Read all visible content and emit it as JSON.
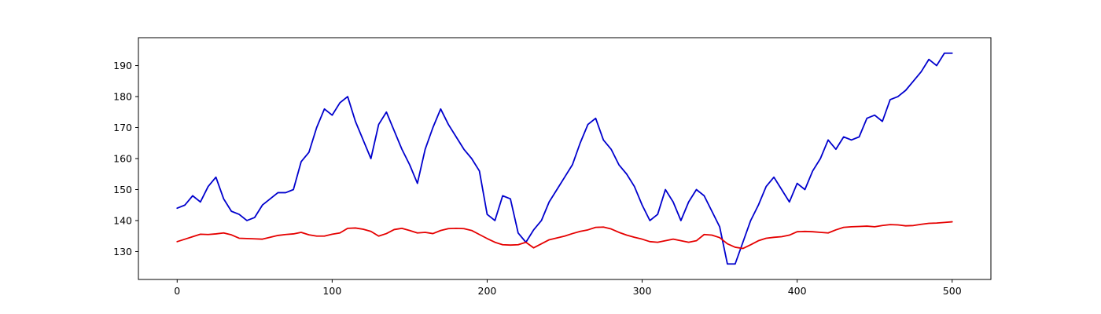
{
  "chart_data": {
    "type": "line",
    "title": "",
    "xlabel": "",
    "ylabel": "",
    "xlim": [
      -25,
      525
    ],
    "ylim": [
      121,
      199
    ],
    "x_ticks": [
      0,
      100,
      200,
      300,
      400,
      500
    ],
    "y_ticks": [
      130,
      140,
      150,
      160,
      170,
      180,
      190
    ],
    "grid": false,
    "legend": "none",
    "series": [
      {
        "color": "#0000cd",
        "x": [
          0,
          5,
          10,
          15,
          20,
          25,
          30,
          35,
          40,
          45,
          50,
          55,
          60,
          65,
          70,
          75,
          80,
          85,
          90,
          95,
          100,
          105,
          110,
          115,
          120,
          125,
          130,
          135,
          140,
          145,
          150,
          155,
          160,
          165,
          170,
          175,
          180,
          185,
          190,
          195,
          200,
          205,
          210,
          215,
          220,
          225,
          230,
          235,
          240,
          245,
          250,
          255,
          260,
          265,
          270,
          275,
          280,
          285,
          290,
          295,
          300,
          305,
          310,
          315,
          320,
          325,
          330,
          335,
          340,
          345,
          350,
          355,
          360,
          365,
          370,
          375,
          380,
          385,
          390,
          395,
          400,
          405,
          410,
          415,
          420,
          425,
          430,
          435,
          440,
          445,
          450,
          455,
          460,
          465,
          470,
          475,
          480,
          485,
          490,
          495,
          500
        ],
        "y": [
          144,
          145,
          148,
          146,
          151,
          154,
          147,
          143,
          142,
          140,
          141,
          145,
          147,
          149,
          149,
          150,
          159,
          162,
          170,
          176,
          174,
          178,
          180,
          172,
          166,
          160,
          171,
          175,
          169,
          163,
          158,
          152,
          163,
          170,
          176,
          171,
          167,
          163,
          160,
          156,
          142,
          140,
          148,
          147,
          136,
          133,
          137,
          140,
          146,
          150,
          154,
          158,
          165,
          171,
          173,
          166,
          163,
          158,
          155,
          151,
          145,
          140,
          142,
          150,
          146,
          140,
          146,
          150,
          148,
          143,
          138,
          126,
          126,
          133,
          140,
          145,
          151,
          154,
          150,
          146,
          152,
          150,
          156,
          160,
          166,
          163,
          167,
          166,
          167,
          173,
          174,
          172,
          179,
          180,
          182,
          185,
          188,
          192,
          190,
          194,
          194
        ]
      },
      {
        "color": "#e50000",
        "x": [
          0,
          5,
          10,
          15,
          20,
          25,
          30,
          35,
          40,
          45,
          50,
          55,
          60,
          65,
          70,
          75,
          80,
          85,
          90,
          95,
          100,
          105,
          110,
          115,
          120,
          125,
          130,
          135,
          140,
          145,
          150,
          155,
          160,
          165,
          170,
          175,
          180,
          185,
          190,
          195,
          200,
          205,
          210,
          215,
          220,
          225,
          230,
          235,
          240,
          245,
          250,
          255,
          260,
          265,
          270,
          275,
          280,
          285,
          290,
          295,
          300,
          305,
          310,
          315,
          320,
          325,
          330,
          335,
          340,
          345,
          350,
          355,
          360,
          365,
          370,
          375,
          380,
          385,
          390,
          395,
          400,
          405,
          410,
          415,
          420,
          425,
          430,
          435,
          440,
          445,
          450,
          455,
          460,
          465,
          470,
          475,
          480,
          485,
          490,
          495,
          500
        ],
        "y": [
          133.2,
          134,
          134.8,
          135.6,
          135.5,
          135.7,
          136,
          135.4,
          134.3,
          134.2,
          134.1,
          134,
          134.6,
          135.2,
          135.5,
          135.7,
          136.2,
          135.4,
          135,
          135,
          135.6,
          136,
          137.5,
          137.6,
          137.2,
          136.5,
          135,
          135.8,
          137.1,
          137.5,
          136.8,
          136,
          136.2,
          135.8,
          136.8,
          137.4,
          137.5,
          137.4,
          136.8,
          135.5,
          134.2,
          133,
          132.2,
          132.1,
          132.2,
          133,
          131.2,
          132.5,
          133.8,
          134.4,
          135,
          135.8,
          136.5,
          137,
          137.8,
          137.9,
          137.3,
          136.2,
          135.3,
          134.6,
          134,
          133.2,
          133,
          133.5,
          134,
          133.5,
          133,
          133.5,
          135.5,
          135.3,
          134.5,
          132.5,
          131.4,
          131,
          132.2,
          133.5,
          134.3,
          134.6,
          134.8,
          135.3,
          136.4,
          136.5,
          136.4,
          136.2,
          136,
          137,
          137.8,
          138,
          138.1,
          138.2,
          138,
          138.4,
          138.7,
          138.6,
          138.3,
          138.4,
          138.8,
          139.1,
          139.2,
          139.4,
          139.6
        ]
      }
    ]
  }
}
